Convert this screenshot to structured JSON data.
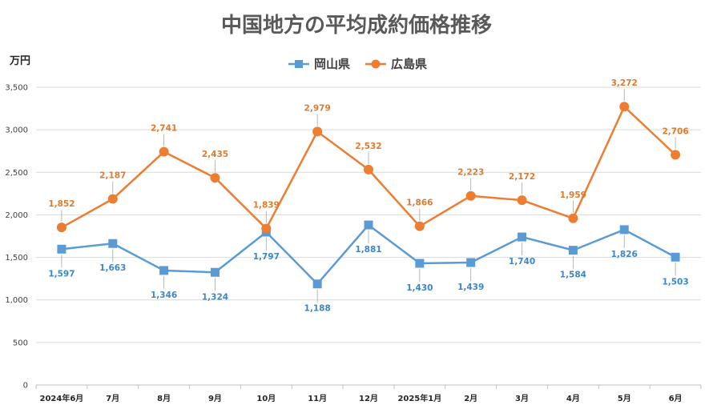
{
  "chart_data": {
    "type": "line",
    "title": "中国地方の平均成約価格推移",
    "unit_label": "万円",
    "categories": [
      "2024年6月",
      "7月",
      "8月",
      "9月",
      "10月",
      "11月",
      "12月",
      "2025年1月",
      "2月",
      "3月",
      "4月",
      "5月",
      "6月"
    ],
    "ylim": [
      0,
      3500
    ],
    "yticks": [
      0,
      500,
      1000,
      1500,
      2000,
      2500,
      3000,
      3500
    ],
    "ytick_labels": [
      "0",
      "500",
      "1,000",
      "1,500",
      "2,000",
      "2,500",
      "3,000",
      "3,500"
    ],
    "grid": true,
    "legend_position": "top",
    "series": [
      {
        "name": "岡山県",
        "color": "#5B9BD5",
        "marker": "square",
        "values": [
          1597,
          1663,
          1346,
          1324,
          1797,
          1188,
          1881,
          1430,
          1439,
          1740,
          1584,
          1826,
          1503
        ],
        "labels": [
          "1,597",
          "1,663",
          "1,346",
          "1,324",
          "1,797",
          "1,188",
          "1,881",
          "1,430",
          "1,439",
          "1,740",
          "1,584",
          "1,826",
          "1,503"
        ]
      },
      {
        "name": "広島県",
        "color": "#ED7D31",
        "marker": "circle",
        "values": [
          1852,
          2187,
          2741,
          2435,
          1839,
          2979,
          2532,
          1866,
          2223,
          2172,
          1959,
          3272,
          2706
        ],
        "labels": [
          "1,852",
          "2,187",
          "2,741",
          "2,435",
          "1,839",
          "2,979",
          "2,532",
          "1,866",
          "2,223",
          "2,172",
          "1,959",
          "3,272",
          "2,706"
        ]
      }
    ]
  }
}
